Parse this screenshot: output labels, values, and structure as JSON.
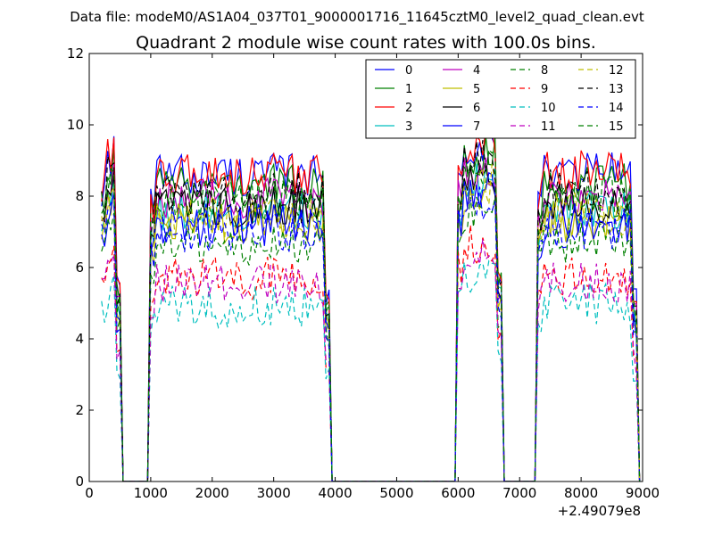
{
  "chart_data": {
    "type": "line",
    "suptitle": "Data file: modeM0/AS1A04_037T01_9000001716_11645cztM0_level2_quad_clean.evt",
    "title": "Quadrant 2 module wise count rates with 100.0s bins.",
    "xlabel": "",
    "ylabel": "",
    "x_offset_label": "+2.49079e8",
    "xlim": [
      0,
      9000
    ],
    "ylim": [
      0,
      12
    ],
    "x_ticks": [
      0,
      1000,
      2000,
      3000,
      4000,
      5000,
      6000,
      7000,
      8000,
      9000
    ],
    "y_ticks": [
      0,
      2,
      4,
      6,
      8,
      10,
      12
    ],
    "legend_position": "top-right",
    "legend_columns": 4,
    "bin_width_s": 100,
    "segments": [
      [
        200,
        500
      ],
      [
        1000,
        3900
      ],
      [
        6000,
        6700
      ],
      [
        7300,
        8900
      ]
    ],
    "series": [
      {
        "name": "0",
        "color": "#0000ff",
        "dash": "solid",
        "level": 8.6
      },
      {
        "name": "1",
        "color": "#008000",
        "dash": "solid",
        "level": 8.3
      },
      {
        "name": "2",
        "color": "#ff0000",
        "dash": "solid",
        "level": 8.6
      },
      {
        "name": "3",
        "color": "#00bfbf",
        "dash": "solid",
        "level": 7.6
      },
      {
        "name": "4",
        "color": "#bf00bf",
        "dash": "solid",
        "level": 7.9
      },
      {
        "name": "5",
        "color": "#bfbf00",
        "dash": "solid",
        "level": 7.2
      },
      {
        "name": "6",
        "color": "#000000",
        "dash": "solid",
        "level": 7.7
      },
      {
        "name": "7",
        "color": "#0000ff",
        "dash": "solid",
        "level": 7.2
      },
      {
        "name": "8",
        "color": "#008000",
        "dash": "dashed",
        "level": 6.6
      },
      {
        "name": "9",
        "color": "#ff0000",
        "dash": "dashed",
        "level": 5.7
      },
      {
        "name": "10",
        "color": "#00bfbf",
        "dash": "dashed",
        "level": 4.9
      },
      {
        "name": "11",
        "color": "#bf00bf",
        "dash": "dashed",
        "level": 5.5
      },
      {
        "name": "12",
        "color": "#bfbf00",
        "dash": "dashed",
        "level": 7.4
      },
      {
        "name": "13",
        "color": "#000000",
        "dash": "dashed",
        "level": 8.1
      },
      {
        "name": "14",
        "color": "#0000ff",
        "dash": "dashed",
        "level": 7.0
      },
      {
        "name": "15",
        "color": "#008000",
        "dash": "dashed",
        "level": 7.9
      }
    ]
  }
}
